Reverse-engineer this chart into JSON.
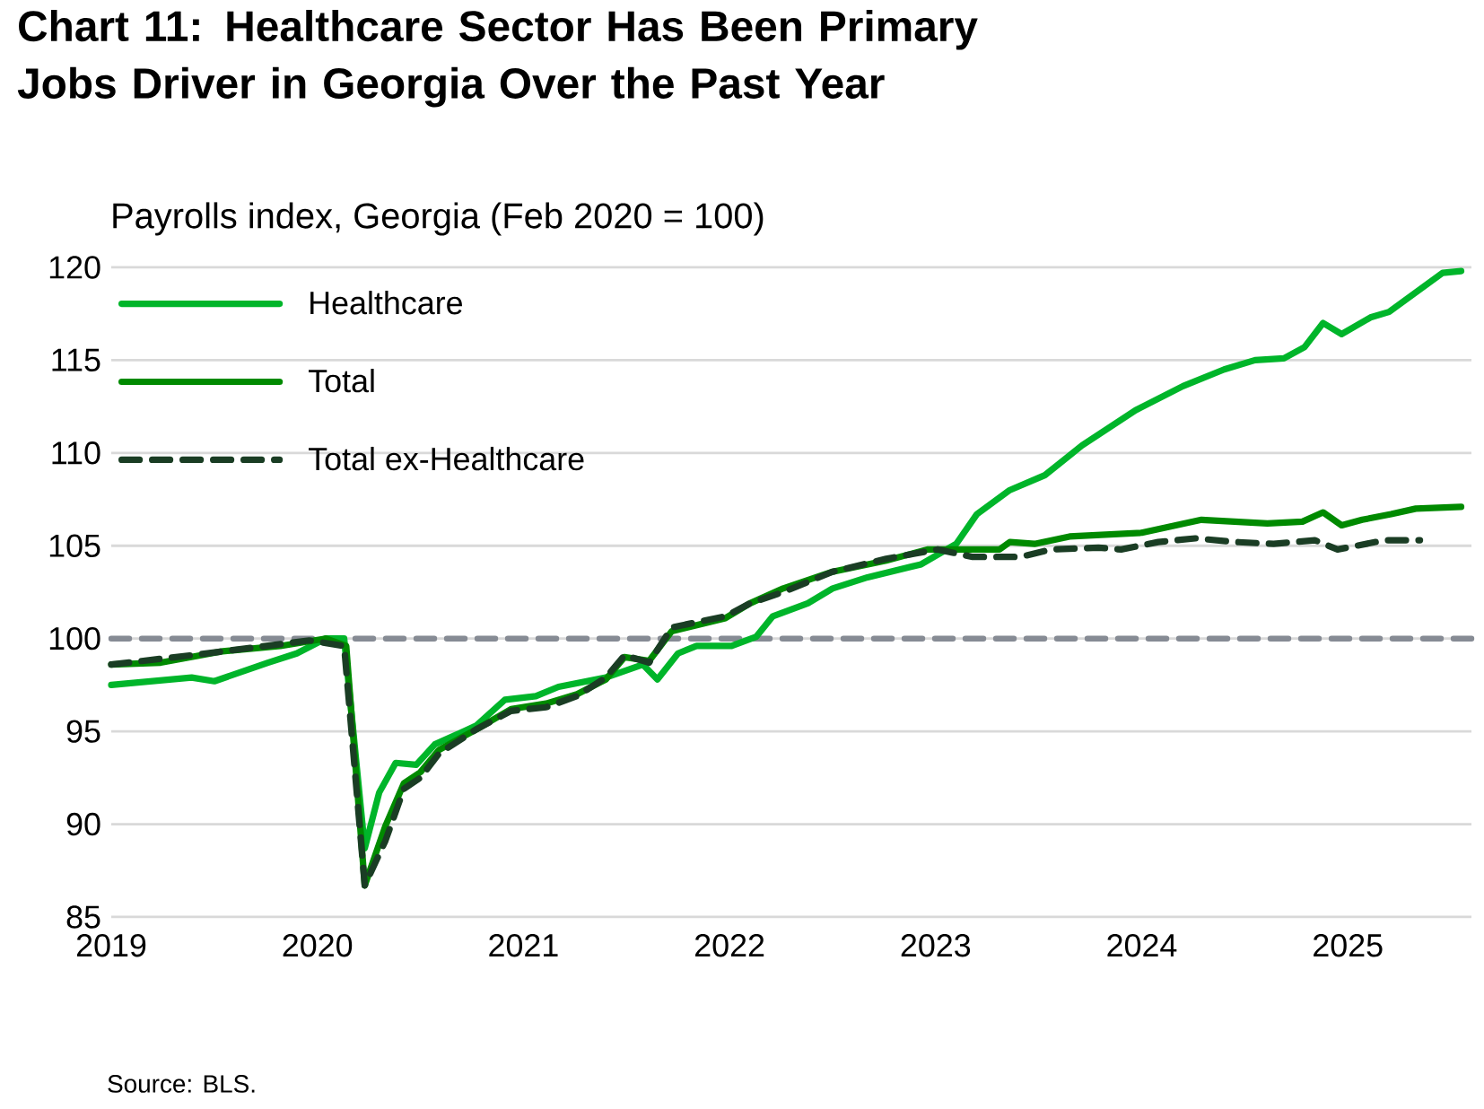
{
  "chart_data": {
    "type": "line",
    "title": "Chart 11: Healthcare Sector Has Been Primary Jobs Driver in Georgia Over the Past Year",
    "ylabel": "Payrolls index, Georgia (Feb 2020 = 100)",
    "xlim": [
      2019,
      2025.6
    ],
    "xticks": [
      2019,
      2020,
      2021,
      2022,
      2023,
      2024,
      2025
    ],
    "ylim": [
      85,
      120
    ],
    "yticks": [
      85,
      90,
      95,
      100,
      105,
      110,
      115,
      120
    ],
    "grid": "y",
    "legend": "top left",
    "marker": "none",
    "ref_lines": [
      {
        "axis": "y",
        "value": 100,
        "color": "#868b94",
        "line_style": "dashed"
      }
    ],
    "annotations": [
      "Source: BLS."
    ],
    "series": [
      {
        "name": "Healthcare",
        "color": "#00b52a",
        "line_style": "solid",
        "x": [
          2019.0,
          2019.39,
          2019.5,
          2019.76,
          2019.9,
          2020.04,
          2020.13,
          2020.23,
          2020.3,
          2020.38,
          2020.48,
          2020.57,
          2020.77,
          2020.91,
          2021.06,
          2021.17,
          2021.4,
          2021.58,
          2021.65,
          2021.75,
          2021.84,
          2022.01,
          2022.13,
          2022.21,
          2022.38,
          2022.5,
          2022.67,
          2022.93,
          2023.1,
          2023.2,
          2023.36,
          2023.53,
          2023.71,
          2023.97,
          2024.2,
          2024.4,
          2024.55,
          2024.69,
          2024.79,
          2024.88,
          2024.97,
          2025.11,
          2025.2,
          2025.46,
          2025.55
        ],
        "values": [
          97.5,
          97.9,
          97.7,
          98.7,
          99.2,
          100,
          100,
          88.7,
          91.7,
          93.3,
          93.2,
          94.3,
          95.3,
          96.7,
          96.9,
          97.4,
          97.9,
          98.6,
          97.8,
          99.2,
          99.6,
          99.6,
          100.1,
          101.2,
          101.9,
          102.7,
          103.3,
          104.0,
          105.1,
          106.7,
          108.0,
          108.8,
          110.4,
          112.3,
          113.6,
          114.5,
          115.0,
          115.1,
          115.7,
          117.0,
          116.4,
          117.3,
          117.6,
          119.7,
          119.8
        ]
      },
      {
        "name": "Total",
        "color": "#008a00",
        "line_style": "solid",
        "x": [
          2019.0,
          2019.24,
          2019.53,
          2019.82,
          2020.04,
          2020.14,
          2020.23,
          2020.33,
          2020.42,
          2020.5,
          2020.59,
          2020.77,
          2020.94,
          2021.11,
          2021.26,
          2021.4,
          2021.49,
          2021.61,
          2021.72,
          2021.98,
          2022.1,
          2022.26,
          2022.5,
          2022.76,
          2022.96,
          2023.31,
          2023.36,
          2023.48,
          2023.65,
          2024.0,
          2024.29,
          2024.61,
          2024.78,
          2024.88,
          2024.97,
          2025.07,
          2025.21,
          2025.33,
          2025.55
        ],
        "values": [
          98.6,
          98.7,
          99.3,
          99.6,
          100,
          99.6,
          86.7,
          89.9,
          92.2,
          92.8,
          94.0,
          95.1,
          96.2,
          96.5,
          97.0,
          97.8,
          99.0,
          98.8,
          100.4,
          101.1,
          101.9,
          102.7,
          103.6,
          104.2,
          104.8,
          104.8,
          105.2,
          105.1,
          105.5,
          105.7,
          106.4,
          106.2,
          106.3,
          106.8,
          106.1,
          106.4,
          106.7,
          107.0,
          107.1
        ]
      },
      {
        "name": "Total ex-Healthcare",
        "color": "#1a3d24",
        "line_style": "dashed",
        "x": [
          2019.0,
          2019.39,
          2019.68,
          2019.96,
          2020.13,
          2020.23,
          2020.33,
          2020.42,
          2020.5,
          2020.59,
          2020.77,
          2020.94,
          2021.11,
          2021.26,
          2021.4,
          2021.49,
          2021.61,
          2021.72,
          2021.98,
          2022.1,
          2022.26,
          2022.5,
          2022.76,
          2023.01,
          2023.18,
          2023.41,
          2023.56,
          2023.79,
          2023.9,
          2024.08,
          2024.26,
          2024.46,
          2024.64,
          2024.84,
          2024.95,
          2025.18,
          2025.35
        ],
        "values": [
          98.6,
          99.1,
          99.5,
          99.9,
          99.6,
          86.7,
          89.1,
          91.9,
          92.5,
          93.8,
          95.1,
          96.1,
          96.3,
          96.9,
          97.9,
          99.1,
          98.7,
          100.6,
          101.2,
          101.9,
          102.5,
          103.6,
          104.3,
          104.8,
          104.4,
          104.4,
          104.8,
          104.9,
          104.8,
          105.2,
          105.4,
          105.2,
          105.1,
          105.3,
          104.8,
          105.3,
          105.3
        ]
      }
    ]
  }
}
